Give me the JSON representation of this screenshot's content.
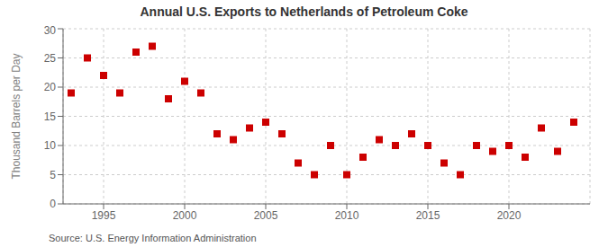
{
  "chart_data": {
    "type": "scatter",
    "title": "Annual U.S. Exports to Netherlands of Petroleum Coke",
    "ylabel": "Thousand Barrels per Day",
    "annotations": [
      "Source: U.S. Energy Information Administration"
    ],
    "x": [
      1993,
      1994,
      1995,
      1996,
      1997,
      1998,
      1999,
      2000,
      2001,
      2002,
      2003,
      2004,
      2005,
      2006,
      2007,
      2008,
      2009,
      2010,
      2011,
      2012,
      2013,
      2014,
      2015,
      2016,
      2017,
      2018,
      2019,
      2020,
      2021,
      2022,
      2023,
      2024
    ],
    "values": [
      19,
      25,
      22,
      19,
      26,
      27,
      18,
      21,
      19,
      12,
      11,
      13,
      14,
      12,
      7,
      5,
      10,
      5,
      8,
      11,
      10,
      12,
      10,
      7,
      5,
      10,
      9,
      10,
      8,
      13,
      9,
      14
    ],
    "color": "#cc0000",
    "marker": "square",
    "xlim": [
      1992.5,
      2025
    ],
    "xticks": [
      1995,
      2000,
      2005,
      2010,
      2015,
      2020
    ],
    "ylim": [
      0,
      30
    ],
    "yticks": [
      0,
      5,
      10,
      15,
      20,
      25,
      30
    ],
    "grid": true
  }
}
